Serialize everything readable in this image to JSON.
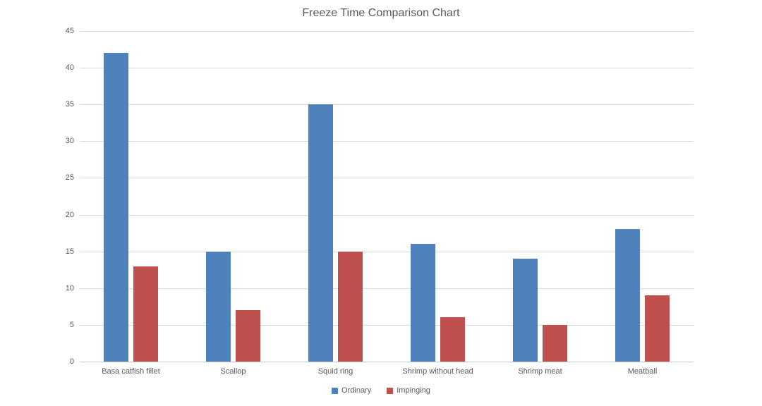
{
  "chart_data": {
    "type": "bar",
    "title": "Freeze Time Comparison Chart",
    "categories": [
      "Basa catfish fillet",
      "Scallop",
      "Squid ring",
      "Shrimp without head",
      "Shrimp meat",
      "Meatball"
    ],
    "series": [
      {
        "name": "Ordinary",
        "color": "#4F81BD",
        "values": [
          42,
          15,
          35,
          16,
          14,
          18
        ]
      },
      {
        "name": "Impinging",
        "color": "#C0504D",
        "values": [
          13,
          7,
          15,
          6,
          5,
          9
        ]
      }
    ],
    "ylim": [
      0,
      45
    ],
    "yticks": [
      0,
      5,
      10,
      15,
      20,
      25,
      30,
      35,
      40,
      45
    ],
    "xlabel": "",
    "ylabel": "",
    "grid": "horizontal",
    "legend_position": "bottom"
  },
  "colors": {
    "title": "#595959",
    "tick_label": "#595959",
    "gridline": "#D9D9D9",
    "axis_line": "#C9C9C9",
    "background": "#FFFFFF"
  }
}
